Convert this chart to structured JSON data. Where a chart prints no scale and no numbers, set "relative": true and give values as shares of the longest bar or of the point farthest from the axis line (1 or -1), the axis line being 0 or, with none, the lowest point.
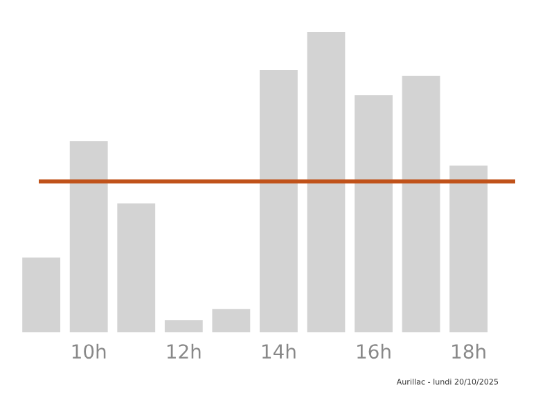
{
  "chart_data": {
    "type": "bar",
    "relative": true,
    "categories": [
      null,
      "10h",
      null,
      "12h",
      null,
      "14h",
      null,
      "16h",
      null,
      "18h"
    ],
    "values": [
      0.249,
      0.636,
      0.429,
      0.041,
      0.078,
      0.873,
      1,
      0.79,
      0.853,
      0.555
    ],
    "color": "#d3d3d3",
    "ref_lines": [
      {
        "axis": "y",
        "value": 0.502,
        "color": "#c0521a"
      }
    ],
    "grid": false,
    "legend": false,
    "annotations": [
      "Aurillac - lundi 20/10/2025"
    ]
  }
}
